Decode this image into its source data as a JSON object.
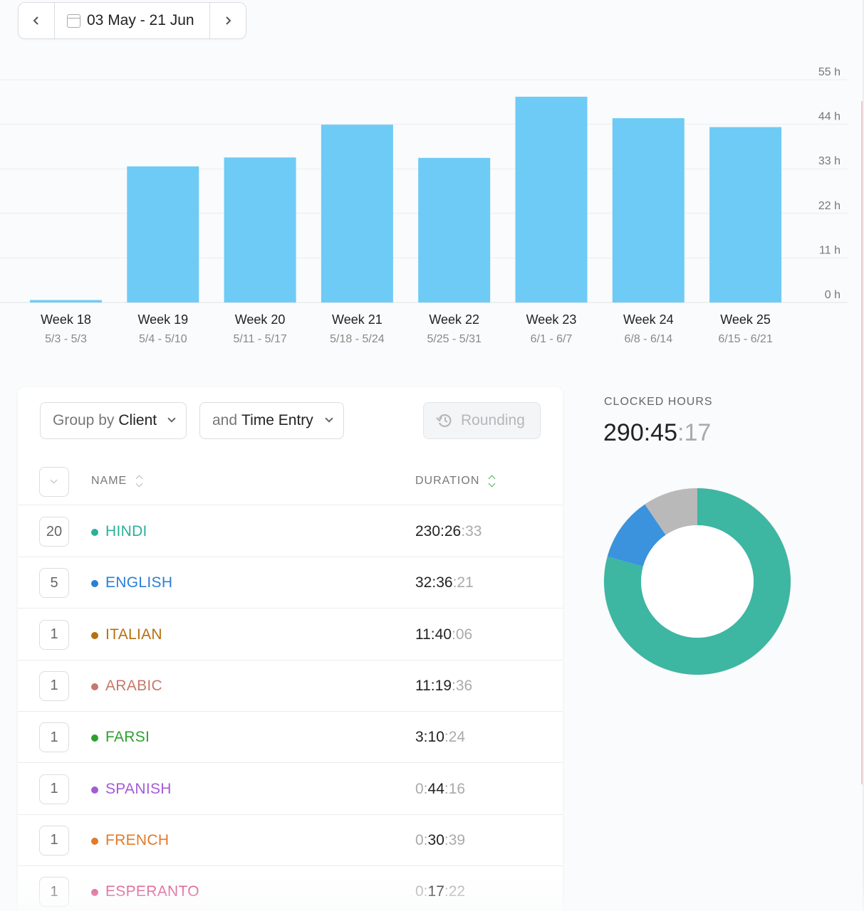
{
  "date_range": {
    "label": "03 May - 21 Jun"
  },
  "icons": {
    "prev": "chevron-left-icon",
    "next": "chevron-right-icon",
    "calendar": "calendar-icon",
    "rounding": "history-icon"
  },
  "chart_data": {
    "type": "bar",
    "categories": [
      "Week 18",
      "Week 19",
      "Week 20",
      "Week 21",
      "Week 22",
      "Week 23",
      "Week 24",
      "Week 25"
    ],
    "subcategories": [
      "5/3 - 5/3",
      "5/4 - 5/10",
      "5/11 - 5/17",
      "5/18 - 5/24",
      "5/25 - 5/31",
      "6/1 - 6/7",
      "6/8 - 6/14",
      "6/15 - 6/21"
    ],
    "values": [
      0.6,
      33.6,
      35.8,
      43.9,
      35.7,
      50.8,
      45.5,
      43.3
    ],
    "ylim": [
      0,
      55
    ],
    "yticks": [
      "0 h",
      "11 h",
      "22 h",
      "33 h",
      "44 h",
      "55 h"
    ],
    "grid": true,
    "color": "#6ecbf5"
  },
  "controls": {
    "group_by": {
      "prefix": "Group by",
      "value": "Client"
    },
    "then_by": {
      "prefix": "and",
      "value": "Time Entry"
    },
    "rounding": "Rounding"
  },
  "table": {
    "columns": {
      "name": "NAME",
      "duration": "DURATION"
    },
    "rows": [
      {
        "count": "20",
        "name": "HINDI",
        "color": "#2ab09a",
        "dur_main": "230:26",
        "dur_dim_pre": "",
        "dur_dim": ":33"
      },
      {
        "count": "5",
        "name": "ENGLISH",
        "color": "#2a7fd4",
        "dur_main": "32:36",
        "dur_dim_pre": "",
        "dur_dim": ":21"
      },
      {
        "count": "1",
        "name": "ITALIAN",
        "color": "#b5700f",
        "dur_main": "11:40",
        "dur_dim_pre": "",
        "dur_dim": ":06"
      },
      {
        "count": "1",
        "name": "ARABIC",
        "color": "#c47a6a",
        "dur_main": "11:19",
        "dur_dim_pre": "",
        "dur_dim": ":36"
      },
      {
        "count": "1",
        "name": "FARSI",
        "color": "#2ea02e",
        "dur_main": "3:10",
        "dur_dim_pre": "",
        "dur_dim": ":24"
      },
      {
        "count": "1",
        "name": "SPANISH",
        "color": "#a45cd6",
        "dur_main": "44",
        "dur_dim_pre": "0:",
        "dur_dim": ":16"
      },
      {
        "count": "1",
        "name": "FRENCH",
        "color": "#e27a2a",
        "dur_main": "30",
        "dur_dim_pre": "0:",
        "dur_dim": ":39"
      },
      {
        "count": "1",
        "name": "ESPERANTO",
        "color": "#d6437e",
        "dur_main": "17",
        "dur_dim_pre": "0:",
        "dur_dim": ":22"
      }
    ]
  },
  "summary": {
    "label": "CLOCKED HOURS",
    "value_main": "290:45",
    "value_dim": ":17",
    "donut": [
      {
        "value": 79.3,
        "color": "#3db6a2"
      },
      {
        "value": 11.2,
        "color": "#3a93dc"
      },
      {
        "value": 9.5,
        "color": "#b9b9b9"
      }
    ]
  }
}
